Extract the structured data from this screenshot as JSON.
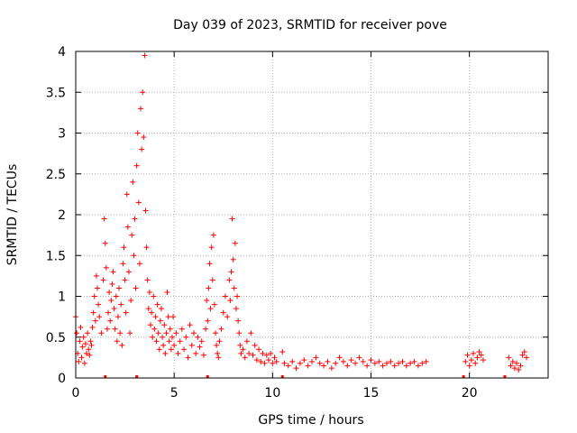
{
  "chart_data": {
    "type": "scatter",
    "title": "Day 039 of 2023, SRMTID for receiver pove",
    "xlabel": "GPS time / hours",
    "ylabel": "SRMTID / TECUs",
    "xlim": [
      0,
      24
    ],
    "ylim": [
      0,
      4
    ],
    "xticks": [
      0,
      5,
      10,
      15,
      20
    ],
    "xtick_labels": [
      "0",
      "5",
      "10",
      "15",
      "20"
    ],
    "yticks": [
      0,
      0.5,
      1,
      1.5,
      2,
      2.5,
      3,
      3.5,
      4
    ],
    "ytick_labels": [
      "0",
      "0.5",
      "1",
      "1.5",
      "2",
      "2.5",
      "3",
      "3.5",
      "4"
    ],
    "grid": true,
    "marker": "+",
    "color": "#ff0000",
    "series": [
      {
        "name": "SRMTID",
        "points": [
          [
            0.0,
            0.75
          ],
          [
            0.05,
            0.55
          ],
          [
            0.1,
            0.3
          ],
          [
            0.15,
            0.2
          ],
          [
            0.2,
            0.45
          ],
          [
            0.25,
            0.62
          ],
          [
            0.3,
            0.25
          ],
          [
            0.35,
            0.38
          ],
          [
            0.4,
            0.5
          ],
          [
            0.45,
            0.18
          ],
          [
            0.5,
            0.42
          ],
          [
            0.55,
            0.3
          ],
          [
            0.6,
            0.55
          ],
          [
            0.65,
            0.35
          ],
          [
            0.7,
            0.28
          ],
          [
            0.75,
            0.45
          ],
          [
            0.8,
            0.4
          ],
          [
            0.85,
            0.62
          ],
          [
            0.9,
            0.8
          ],
          [
            0.95,
            1.0
          ],
          [
            1.0,
            0.7
          ],
          [
            1.05,
            1.25
          ],
          [
            1.1,
            1.1
          ],
          [
            1.15,
            0.9
          ],
          [
            1.2,
            0.75
          ],
          [
            1.3,
            0.55
          ],
          [
            1.4,
            1.2
          ],
          [
            1.45,
            1.95
          ],
          [
            1.5,
            1.65
          ],
          [
            1.55,
            1.35
          ],
          [
            1.6,
            0.6
          ],
          [
            1.65,
            0.8
          ],
          [
            1.7,
            1.05
          ],
          [
            1.75,
            0.7
          ],
          [
            1.8,
            0.95
          ],
          [
            1.85,
            1.15
          ],
          [
            1.9,
            1.3
          ],
          [
            1.95,
            0.85
          ],
          [
            2.0,
            0.6
          ],
          [
            2.05,
            1.0
          ],
          [
            2.1,
            0.45
          ],
          [
            2.15,
            0.75
          ],
          [
            2.2,
            1.1
          ],
          [
            2.25,
            0.55
          ],
          [
            2.3,
            0.9
          ],
          [
            2.35,
            0.4
          ],
          [
            2.4,
            1.4
          ],
          [
            2.45,
            1.6
          ],
          [
            2.5,
            1.2
          ],
          [
            2.55,
            0.8
          ],
          [
            2.6,
            2.25
          ],
          [
            2.65,
            1.85
          ],
          [
            2.7,
            1.3
          ],
          [
            2.75,
            0.55
          ],
          [
            2.8,
            0.95
          ],
          [
            2.85,
            1.75
          ],
          [
            2.9,
            2.4
          ],
          [
            2.95,
            1.5
          ],
          [
            3.0,
            1.95
          ],
          [
            3.05,
            1.1
          ],
          [
            3.1,
            2.6
          ],
          [
            3.15,
            3.0
          ],
          [
            3.2,
            2.15
          ],
          [
            3.25,
            1.4
          ],
          [
            3.3,
            3.3
          ],
          [
            3.35,
            2.8
          ],
          [
            3.4,
            3.5
          ],
          [
            3.45,
            2.95
          ],
          [
            3.5,
            3.95
          ],
          [
            3.55,
            2.05
          ],
          [
            3.6,
            1.6
          ],
          [
            3.65,
            1.2
          ],
          [
            3.7,
            0.85
          ],
          [
            3.75,
            1.05
          ],
          [
            3.8,
            0.65
          ],
          [
            3.85,
            0.8
          ],
          [
            3.9,
            0.5
          ],
          [
            3.95,
            1.0
          ],
          [
            4.0,
            0.6
          ],
          [
            4.05,
            0.75
          ],
          [
            4.1,
            0.45
          ],
          [
            4.15,
            0.9
          ],
          [
            4.2,
            0.55
          ],
          [
            4.25,
            0.35
          ],
          [
            4.3,
            0.7
          ],
          [
            4.35,
            0.85
          ],
          [
            4.4,
            0.5
          ],
          [
            4.45,
            0.4
          ],
          [
            4.5,
            0.65
          ],
          [
            4.55,
            0.3
          ],
          [
            4.6,
            0.55
          ],
          [
            4.65,
            1.05
          ],
          [
            4.7,
            0.75
          ],
          [
            4.75,
            0.45
          ],
          [
            4.8,
            0.6
          ],
          [
            4.85,
            0.35
          ],
          [
            4.9,
            0.5
          ],
          [
            4.95,
            0.75
          ],
          [
            5.0,
            0.4
          ],
          [
            5.1,
            0.55
          ],
          [
            5.2,
            0.3
          ],
          [
            5.3,
            0.45
          ],
          [
            5.4,
            0.6
          ],
          [
            5.5,
            0.35
          ],
          [
            5.6,
            0.5
          ],
          [
            5.7,
            0.25
          ],
          [
            5.8,
            0.65
          ],
          [
            5.9,
            0.4
          ],
          [
            6.0,
            0.55
          ],
          [
            6.1,
            0.3
          ],
          [
            6.2,
            0.5
          ],
          [
            6.3,
            0.38
          ],
          [
            6.4,
            0.45
          ],
          [
            6.5,
            0.28
          ],
          [
            6.6,
            0.6
          ],
          [
            6.65,
            0.95
          ],
          [
            6.7,
            0.7
          ],
          [
            6.75,
            1.1
          ],
          [
            6.8,
            1.4
          ],
          [
            6.85,
            0.85
          ],
          [
            6.9,
            1.6
          ],
          [
            6.95,
            1.2
          ],
          [
            7.0,
            1.75
          ],
          [
            7.05,
            0.9
          ],
          [
            7.1,
            0.55
          ],
          [
            7.15,
            0.4
          ],
          [
            7.2,
            0.3
          ],
          [
            7.25,
            0.25
          ],
          [
            7.3,
            0.45
          ],
          [
            7.4,
            0.6
          ],
          [
            7.5,
            0.8
          ],
          [
            7.6,
            1.0
          ],
          [
            7.7,
            0.75
          ],
          [
            7.8,
            1.2
          ],
          [
            7.85,
            0.95
          ],
          [
            7.9,
            1.3
          ],
          [
            7.95,
            1.95
          ],
          [
            8.0,
            1.45
          ],
          [
            8.05,
            1.1
          ],
          [
            8.1,
            1.65
          ],
          [
            8.15,
            0.85
          ],
          [
            8.2,
            1.0
          ],
          [
            8.25,
            0.7
          ],
          [
            8.3,
            0.55
          ],
          [
            8.35,
            0.4
          ],
          [
            8.4,
            0.3
          ],
          [
            8.5,
            0.35
          ],
          [
            8.6,
            0.25
          ],
          [
            8.7,
            0.45
          ],
          [
            8.8,
            0.3
          ],
          [
            8.9,
            0.55
          ],
          [
            9.0,
            0.28
          ],
          [
            9.1,
            0.4
          ],
          [
            9.2,
            0.22
          ],
          [
            9.3,
            0.35
          ],
          [
            9.4,
            0.2
          ],
          [
            9.5,
            0.3
          ],
          [
            9.6,
            0.18
          ],
          [
            9.7,
            0.28
          ],
          [
            9.8,
            0.22
          ],
          [
            9.9,
            0.3
          ],
          [
            10.0,
            0.18
          ],
          [
            10.1,
            0.25
          ],
          [
            10.2,
            0.2
          ],
          [
            10.5,
            0.32
          ],
          [
            10.6,
            0.18
          ],
          [
            10.8,
            0.15
          ],
          [
            11.0,
            0.2
          ],
          [
            11.2,
            0.12
          ],
          [
            11.4,
            0.18
          ],
          [
            11.6,
            0.22
          ],
          [
            11.8,
            0.15
          ],
          [
            12.0,
            0.2
          ],
          [
            12.2,
            0.25
          ],
          [
            12.4,
            0.18
          ],
          [
            12.6,
            0.15
          ],
          [
            12.8,
            0.2
          ],
          [
            13.0,
            0.12
          ],
          [
            13.2,
            0.18
          ],
          [
            13.4,
            0.25
          ],
          [
            13.6,
            0.2
          ],
          [
            13.8,
            0.15
          ],
          [
            14.0,
            0.22
          ],
          [
            14.2,
            0.18
          ],
          [
            14.4,
            0.25
          ],
          [
            14.6,
            0.2
          ],
          [
            14.8,
            0.15
          ],
          [
            15.0,
            0.22
          ],
          [
            15.2,
            0.18
          ],
          [
            15.4,
            0.2
          ],
          [
            15.6,
            0.15
          ],
          [
            15.8,
            0.18
          ],
          [
            16.0,
            0.2
          ],
          [
            16.2,
            0.15
          ],
          [
            16.4,
            0.18
          ],
          [
            16.6,
            0.2
          ],
          [
            16.8,
            0.15
          ],
          [
            17.0,
            0.18
          ],
          [
            17.2,
            0.2
          ],
          [
            17.4,
            0.15
          ],
          [
            17.6,
            0.18
          ],
          [
            17.8,
            0.2
          ],
          [
            19.8,
            0.2
          ],
          [
            19.9,
            0.28
          ],
          [
            20.0,
            0.15
          ],
          [
            20.1,
            0.22
          ],
          [
            20.2,
            0.3
          ],
          [
            20.3,
            0.18
          ],
          [
            20.4,
            0.25
          ],
          [
            20.5,
            0.32
          ],
          [
            20.6,
            0.28
          ],
          [
            20.7,
            0.22
          ],
          [
            22.0,
            0.25
          ],
          [
            22.1,
            0.15
          ],
          [
            22.2,
            0.2
          ],
          [
            22.3,
            0.12
          ],
          [
            22.4,
            0.18
          ],
          [
            22.5,
            0.1
          ],
          [
            22.6,
            0.15
          ],
          [
            22.7,
            0.28
          ],
          [
            22.8,
            0.32
          ],
          [
            22.9,
            0.25
          ]
        ]
      }
    ],
    "gap_markers_x": [
      1.5,
      3.1,
      6.7,
      10.5,
      19.7,
      21.8
    ]
  }
}
